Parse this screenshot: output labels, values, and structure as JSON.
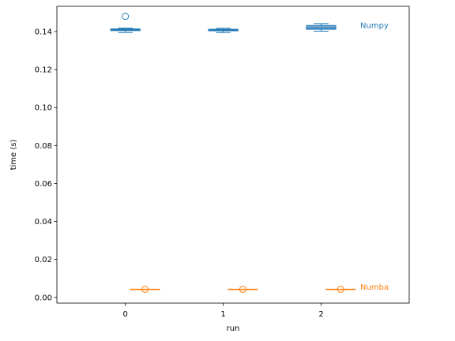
{
  "chart_data": {
    "type": "box",
    "xlabel": "run",
    "ylabel": "time (s)",
    "xlim": [
      -0.7,
      2.9
    ],
    "ylim": [
      -0.003,
      0.1533
    ],
    "x_ticks": [
      0,
      1,
      2
    ],
    "x_tick_labels": [
      "0",
      "1",
      "2"
    ],
    "y_ticks": [
      0.0,
      0.02,
      0.04,
      0.06,
      0.08,
      0.1,
      0.12,
      0.14
    ],
    "y_tick_labels": [
      "0.00",
      "0.02",
      "0.04",
      "0.06",
      "0.08",
      "0.10",
      "0.12",
      "0.14"
    ],
    "grid": false,
    "series": [
      {
        "name": "Numpy",
        "color": "#1f77b4",
        "position_offset": 0,
        "label_x": 2.4,
        "label_y": 0.1433,
        "boxes": [
          {
            "x": 0,
            "whisker_low": 0.1395,
            "q1": 0.1405,
            "median": 0.141,
            "q3": 0.1414,
            "whisker_high": 0.1418,
            "outliers": [
              0.148
            ]
          },
          {
            "x": 1,
            "whisker_low": 0.1395,
            "q1": 0.1404,
            "median": 0.1408,
            "q3": 0.1412,
            "whisker_high": 0.1417,
            "outliers": []
          },
          {
            "x": 2,
            "whisker_low": 0.1402,
            "q1": 0.1412,
            "median": 0.142,
            "q3": 0.1432,
            "whisker_high": 0.1442,
            "outliers": []
          }
        ]
      },
      {
        "name": "Numba",
        "color": "#ff7f0e",
        "position_offset": 0.2,
        "label_x": 2.4,
        "label_y": 0.0055,
        "boxes": [
          {
            "x": 0,
            "whisker_low": 0.0043,
            "q1": 0.0043,
            "median": 0.0043,
            "q3": 0.0043,
            "whisker_high": 0.0043,
            "outliers": [
              0.0043
            ]
          },
          {
            "x": 1,
            "whisker_low": 0.0043,
            "q1": 0.0043,
            "median": 0.0043,
            "q3": 0.0043,
            "whisker_high": 0.0043,
            "outliers": [
              0.0043
            ]
          },
          {
            "x": 2,
            "whisker_low": 0.0043,
            "q1": 0.0043,
            "median": 0.0043,
            "q3": 0.0043,
            "whisker_high": 0.0043,
            "outliers": [
              0.0043
            ]
          }
        ]
      }
    ]
  }
}
